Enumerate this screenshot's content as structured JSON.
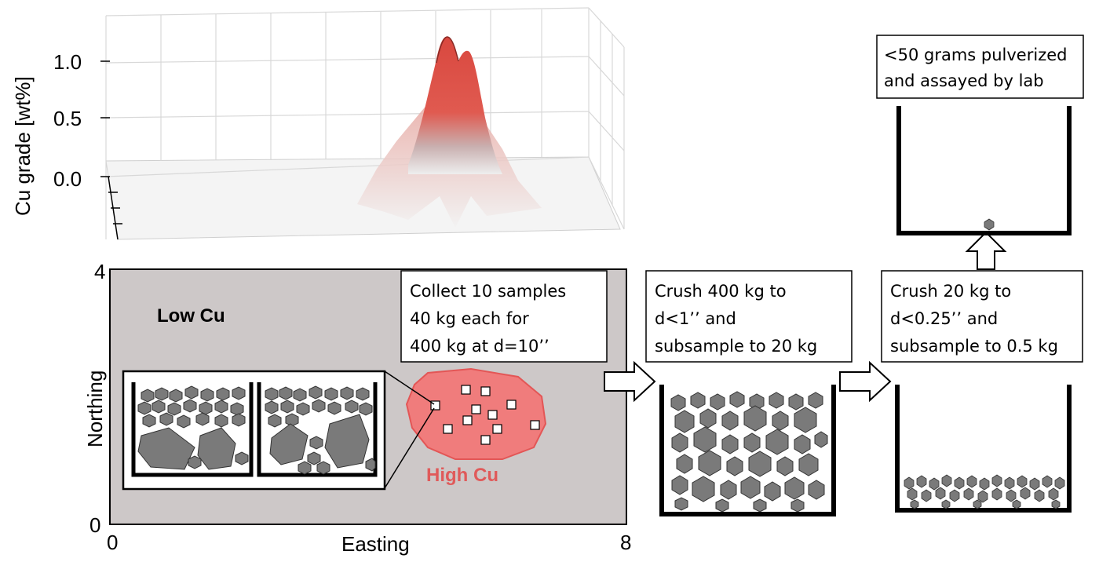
{
  "surface_plot": {
    "ylabel": "Cu grade [wt%]",
    "ticks": [
      "1.0",
      "0.5",
      "0.0"
    ]
  },
  "map": {
    "xlabel": "Easting",
    "ylabel": "Northing",
    "x_ticks": [
      "0",
      "8"
    ],
    "y_ticks": [
      "4",
      "0"
    ],
    "low_label": "Low Cu",
    "high_label": "High Cu"
  },
  "steps": [
    {
      "lines": [
        "Collect 10 samples",
        "40 kg each for",
        "400 kg at d=10’’"
      ]
    },
    {
      "lines": [
        "Crush 400 kg to",
        "d<1’’ and",
        "subsample to 20 kg"
      ]
    },
    {
      "lines": [
        "Crush 20 kg to",
        "d<0.25’’ and",
        "subsample to 0.5 kg"
      ]
    },
    {
      "lines": [
        "<50 grams pulverized",
        "and assayed by lab"
      ]
    }
  ],
  "colors": {
    "map_background": "#cdc8c8",
    "high_region": "#f07c7c",
    "peak": "#d9483f",
    "rock": "#7a7a7a"
  }
}
